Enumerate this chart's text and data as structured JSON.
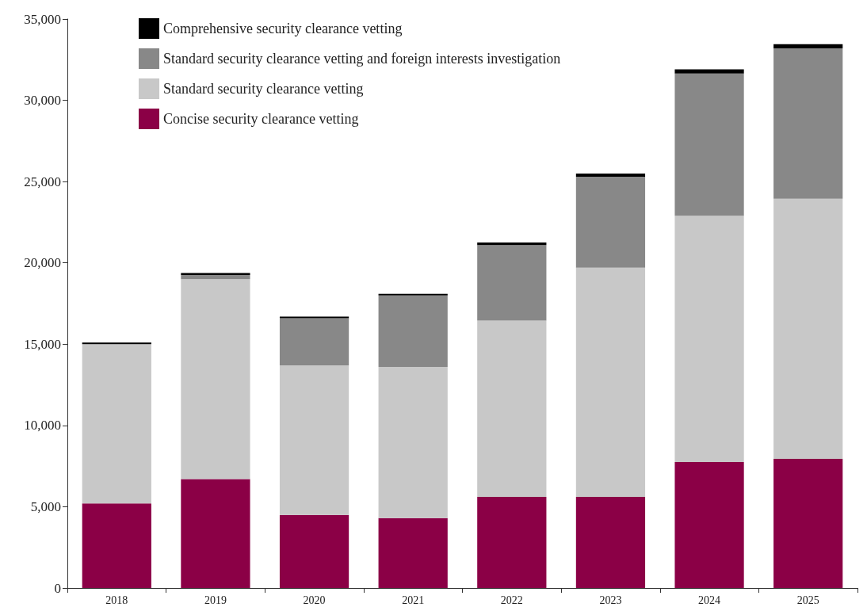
{
  "chart_data": {
    "type": "bar",
    "stacked": true,
    "categories": [
      "2018",
      "2019",
      "2020",
      "2021",
      "2022",
      "2023",
      "2024",
      "2025"
    ],
    "series": [
      {
        "name": "Concise security clearance vetting",
        "color": "#8b0046",
        "values": [
          5200,
          6700,
          4500,
          4300,
          5600,
          5600,
          7750,
          7950
        ]
      },
      {
        "name": "Standard security clearance vetting",
        "color": "#c8c8c8",
        "values": [
          9800,
          12300,
          9200,
          9300,
          10850,
          14100,
          15150,
          16000
        ]
      },
      {
        "name": "Standard security clearance vetting and foreign interests investigation",
        "color": "#888888",
        "values": [
          0,
          250,
          2900,
          4400,
          4650,
          5600,
          8750,
          9250
        ]
      },
      {
        "name": "Comprehensive security clearance vetting",
        "color": "#000000",
        "values": [
          100,
          130,
          100,
          100,
          150,
          200,
          250,
          250
        ]
      }
    ],
    "ylim": [
      0,
      35000
    ],
    "yticks": [
      {
        "value": 0,
        "label": "0"
      },
      {
        "value": 5000,
        "label": "5,000"
      },
      {
        "value": 10000,
        "label": "10,000"
      },
      {
        "value": 15000,
        "label": "15,000"
      },
      {
        "value": 20000,
        "label": "20,000"
      },
      {
        "value": 25000,
        "label": "25,000"
      },
      {
        "value": 30000,
        "label": "30,000"
      },
      {
        "value": 35000,
        "label": "35,000"
      }
    ],
    "grid": false,
    "legend": "top left"
  }
}
